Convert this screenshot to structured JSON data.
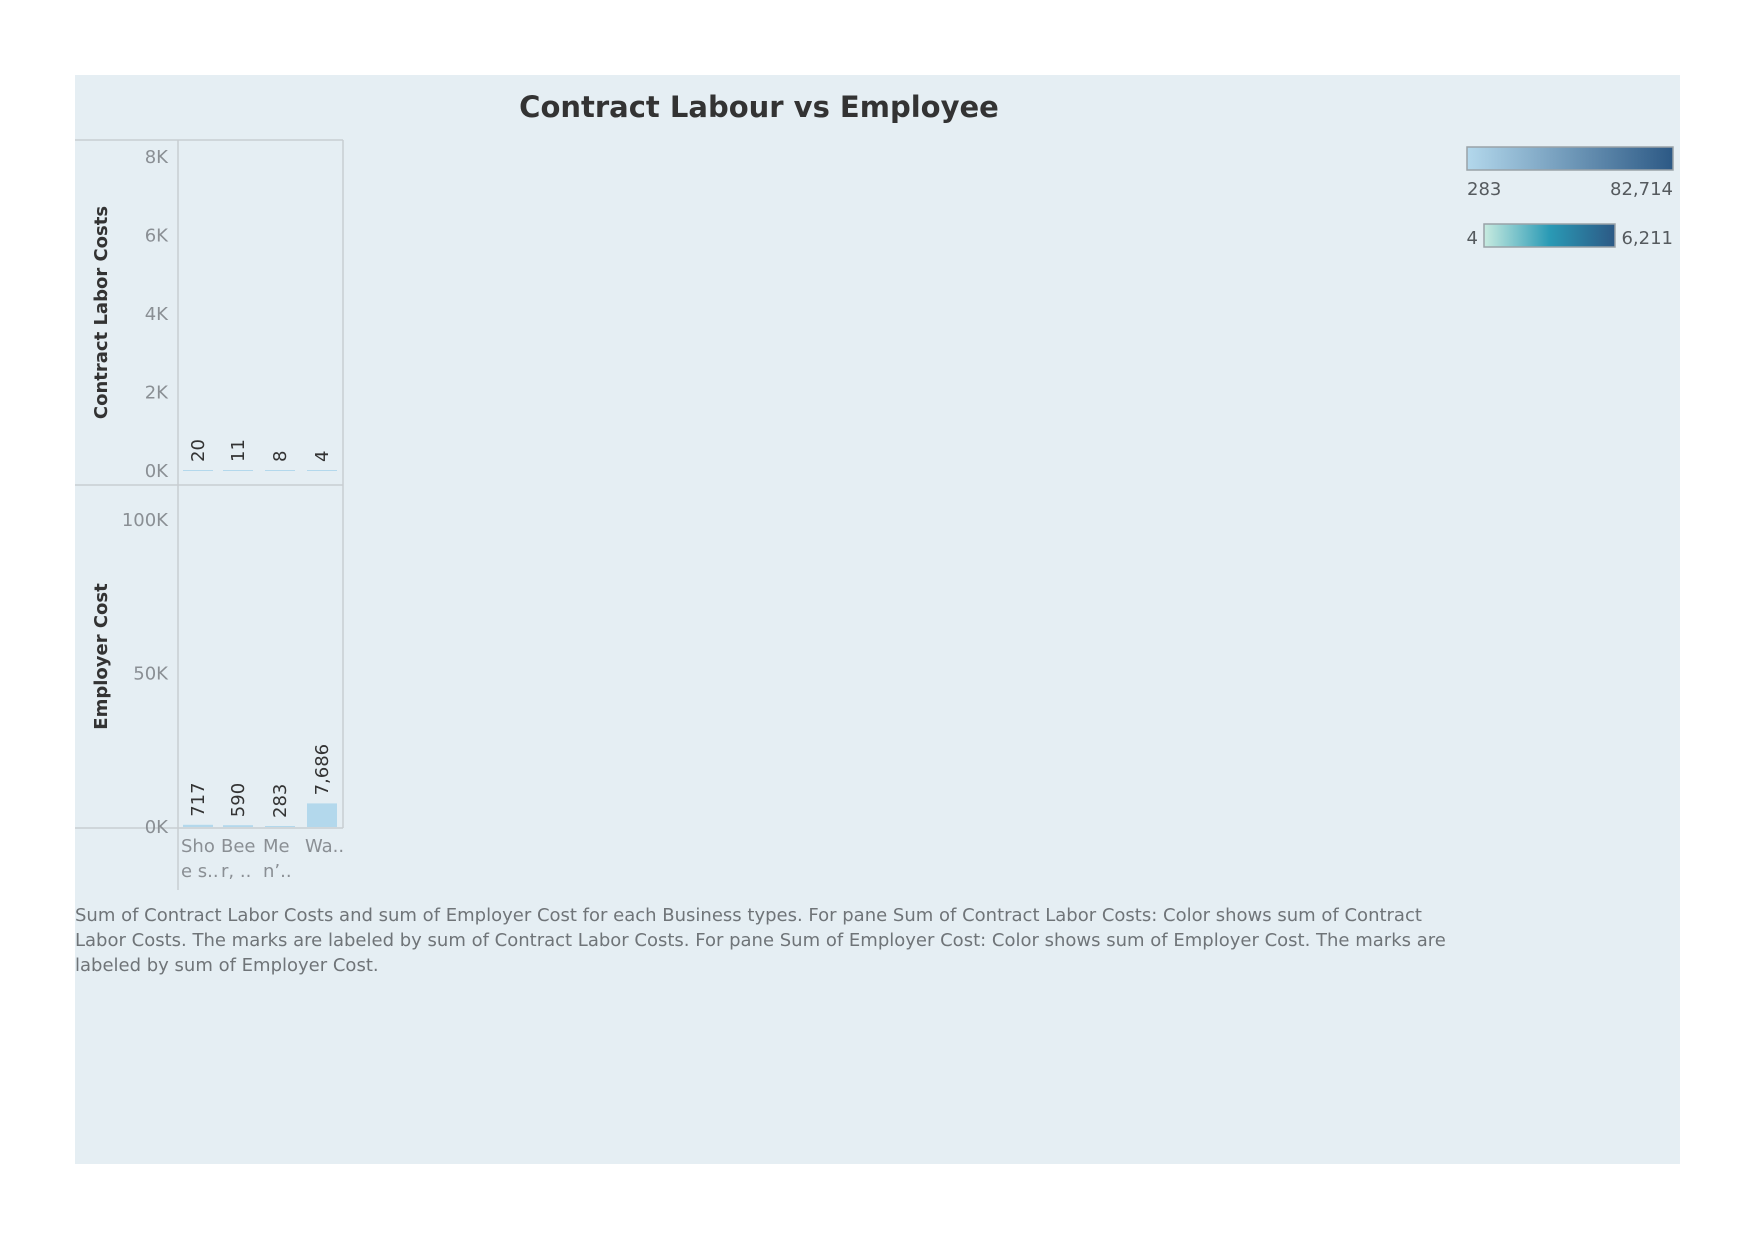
{
  "chart_data": {
    "type": "bar",
    "title": "Contract Labour vs Employee",
    "categories": [
      "Sho e s..",
      "Bee r, ..",
      "Me n'..",
      "Wa.."
    ],
    "category_lines": [
      [
        "Sho",
        "e s.."
      ],
      [
        "Bee",
        "r, .."
      ],
      [
        "Me",
        "n’.."
      ],
      [
        "Wa..",
        ""
      ]
    ],
    "panes": [
      {
        "measure": "Contract Labor Costs",
        "ylabel": "Contract Labor Costs",
        "values": [
          20,
          11,
          8,
          4
        ],
        "value_labels": [
          "20",
          "11",
          "8",
          "4"
        ],
        "ylim": [
          0,
          8000
        ],
        "ticks": [
          0,
          2000,
          4000,
          6000,
          8000
        ],
        "tick_labels": [
          "0K",
          "2K",
          "4K",
          "6K",
          "8K"
        ]
      },
      {
        "measure": "Employer Cost",
        "ylabel": "Employer Cost",
        "values": [
          717,
          590,
          283,
          7686
        ],
        "value_labels": [
          "717",
          "590",
          "283",
          "7,686"
        ],
        "ylim": [
          0,
          100000
        ],
        "ticks": [
          0,
          50000,
          100000
        ],
        "tick_labels": [
          "0K",
          "50K",
          "100K"
        ]
      }
    ],
    "legends": [
      {
        "min_label": "283",
        "max_label": "82,714",
        "colors": [
          "#b3d8ec",
          "#2c5985"
        ]
      },
      {
        "min_label": "4",
        "max_label": "6,211",
        "colors": [
          "#c8ebe0",
          "#2a9ab5",
          "#2c5985"
        ]
      }
    ],
    "grid": false
  },
  "caption": "Sum of Contract Labor Costs and sum of Employer Cost for each Business types.  For pane Sum of Contract Labor Costs:  Color shows sum of Contract Labor Costs.  The marks are labeled by sum of Contract Labor Costs.  For pane Sum of Employer Cost:  Color shows sum of Employer Cost.  The marks are labeled by sum of Employer Cost.",
  "colors": {
    "background": "#e5eef3",
    "bar_light": "#b3d8ec"
  }
}
